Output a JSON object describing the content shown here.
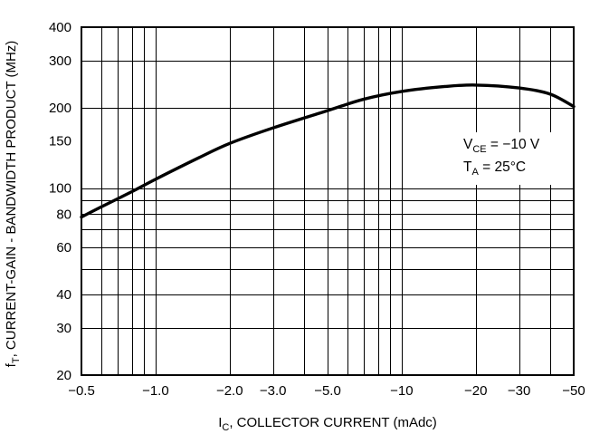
{
  "chart_data": {
    "type": "line",
    "x_scale": "log",
    "y_scale": "log",
    "xlim": [
      -0.5,
      -50
    ],
    "ylim": [
      20,
      400
    ],
    "x_tick_values": [
      -0.5,
      -1.0,
      -2.0,
      -3.0,
      -5.0,
      -10,
      -20,
      -30,
      -50
    ],
    "x_tick_labels": [
      "-0.5",
      "-1.0",
      "-2.0",
      "-3.0",
      "-5.0",
      "-10",
      "-20",
      "-30",
      "-50"
    ],
    "y_tick_values": [
      20,
      30,
      40,
      60,
      80,
      100,
      150,
      200,
      300,
      400
    ],
    "y_tick_labels": [
      "20",
      "30",
      "40",
      "60",
      "80",
      "100",
      "150",
      "200",
      "300",
      "400"
    ],
    "xlabel": {
      "main": "I",
      "sub": "C",
      "rest": ", COLLECTOR CURRENT (mAdc)"
    },
    "ylabel": {
      "main": "f",
      "sub": "T",
      "rest": ", CURRENT-GAIN - BANDWIDTH PRODUCT (MHz)"
    },
    "grid": true,
    "annotation": {
      "line1": {
        "main": "V",
        "sub": "CE",
        "rest": " = −10 V"
      },
      "line2": {
        "main": "T",
        "sub": "A",
        "rest": " = 25°C"
      },
      "placement": "right"
    },
    "series": [
      {
        "x": [
          -0.5,
          -0.6,
          -0.8,
          -1.0,
          -1.5,
          -2.0,
          -3.0,
          -5.0,
          -7.0,
          -10,
          -15,
          -20,
          -30,
          -40,
          -50
        ],
        "y": [
          78,
          85,
          97,
          108,
          130,
          147,
          168,
          195,
          215,
          230,
          240,
          243,
          237,
          225,
          202
        ]
      }
    ]
  }
}
